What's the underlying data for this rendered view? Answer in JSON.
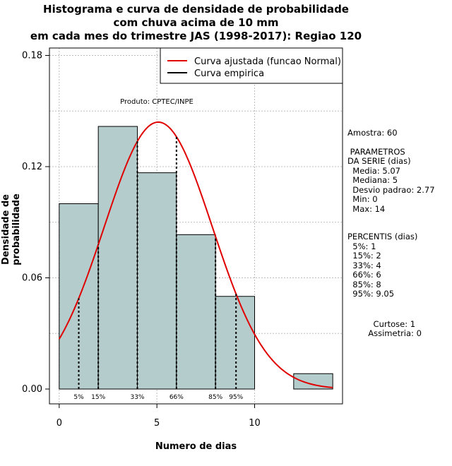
{
  "chart_data": {
    "type": "bar",
    "title_lines": [
      "Histograma e curva de densidade de probabilidade",
      "com chuva acima de 10 mm",
      "em cada mes do trimestre JAS (1998-2017): Regiao 120"
    ],
    "xlabel": "Numero de dias",
    "ylabel": "Densidade de probabilidade",
    "xlim": [
      -0.5,
      14.5
    ],
    "ylim": [
      -0.008,
      0.184
    ],
    "x_ticks": [
      0,
      5,
      10
    ],
    "y_ticks": [
      0.0,
      0.06,
      0.12,
      0.18
    ],
    "y_tick_labels": [
      "0.00",
      "0.06",
      "0.12",
      "0.18"
    ],
    "grid": true,
    "grid_y": [
      0.03,
      0.06,
      0.09,
      0.12,
      0.15,
      0.18
    ],
    "grid_x": [
      0,
      5,
      10
    ],
    "bars": [
      {
        "x0": 0,
        "x1": 2,
        "density": 0.1
      },
      {
        "x0": 2,
        "x1": 4,
        "density": 0.1417
      },
      {
        "x0": 4,
        "x1": 6,
        "density": 0.1167
      },
      {
        "x0": 6,
        "x1": 8,
        "density": 0.0833
      },
      {
        "x0": 8,
        "x1": 10,
        "density": 0.05
      },
      {
        "x0": 10,
        "x1": 12,
        "density": 0
      },
      {
        "x0": 12,
        "x1": 14,
        "density": 0.0083
      }
    ],
    "bar_color": "#b5cccc",
    "curve": {
      "name": "Curva ajustada (funcao Normal)",
      "type": "normal",
      "mean": 5.07,
      "sd": 2.77,
      "color": "#e00000",
      "x_range": [
        0,
        14
      ]
    },
    "empirical_curve_name": "Curva empirica",
    "percentile_lines": [
      {
        "label": "5%",
        "x": 1
      },
      {
        "label": "15%",
        "x": 2
      },
      {
        "label": "33%",
        "x": 4
      },
      {
        "label": "66%",
        "x": 6
      },
      {
        "label": "85%",
        "x": 8
      },
      {
        "label": "95%",
        "x": 9.05
      }
    ],
    "legend_position": "top-right",
    "annotation": "Produto: CPTEC/INPE"
  },
  "stats": {
    "amostra": "Amostra: 60",
    "param_header_1": " PARAMETROS",
    "param_header_2": "DA SERIE (dias)",
    "media": "  Media: 5.07",
    "mediana": "  Mediana: 5",
    "desvio": "  Desvio padrao: 2.77",
    "min": "  Min: 0",
    "max": "  Max: 14",
    "percentis_header": "PERCENTIS (dias)",
    "p5": "  5%: 1",
    "p15": "  15%: 2",
    "p33": "  33%: 4",
    "p66": "  66%: 6",
    "p85": "  85%: 8",
    "p95": "  95%: 9.05",
    "curtose": "          Curtose: 1",
    "assimetria": "        Assimetria: 0"
  }
}
